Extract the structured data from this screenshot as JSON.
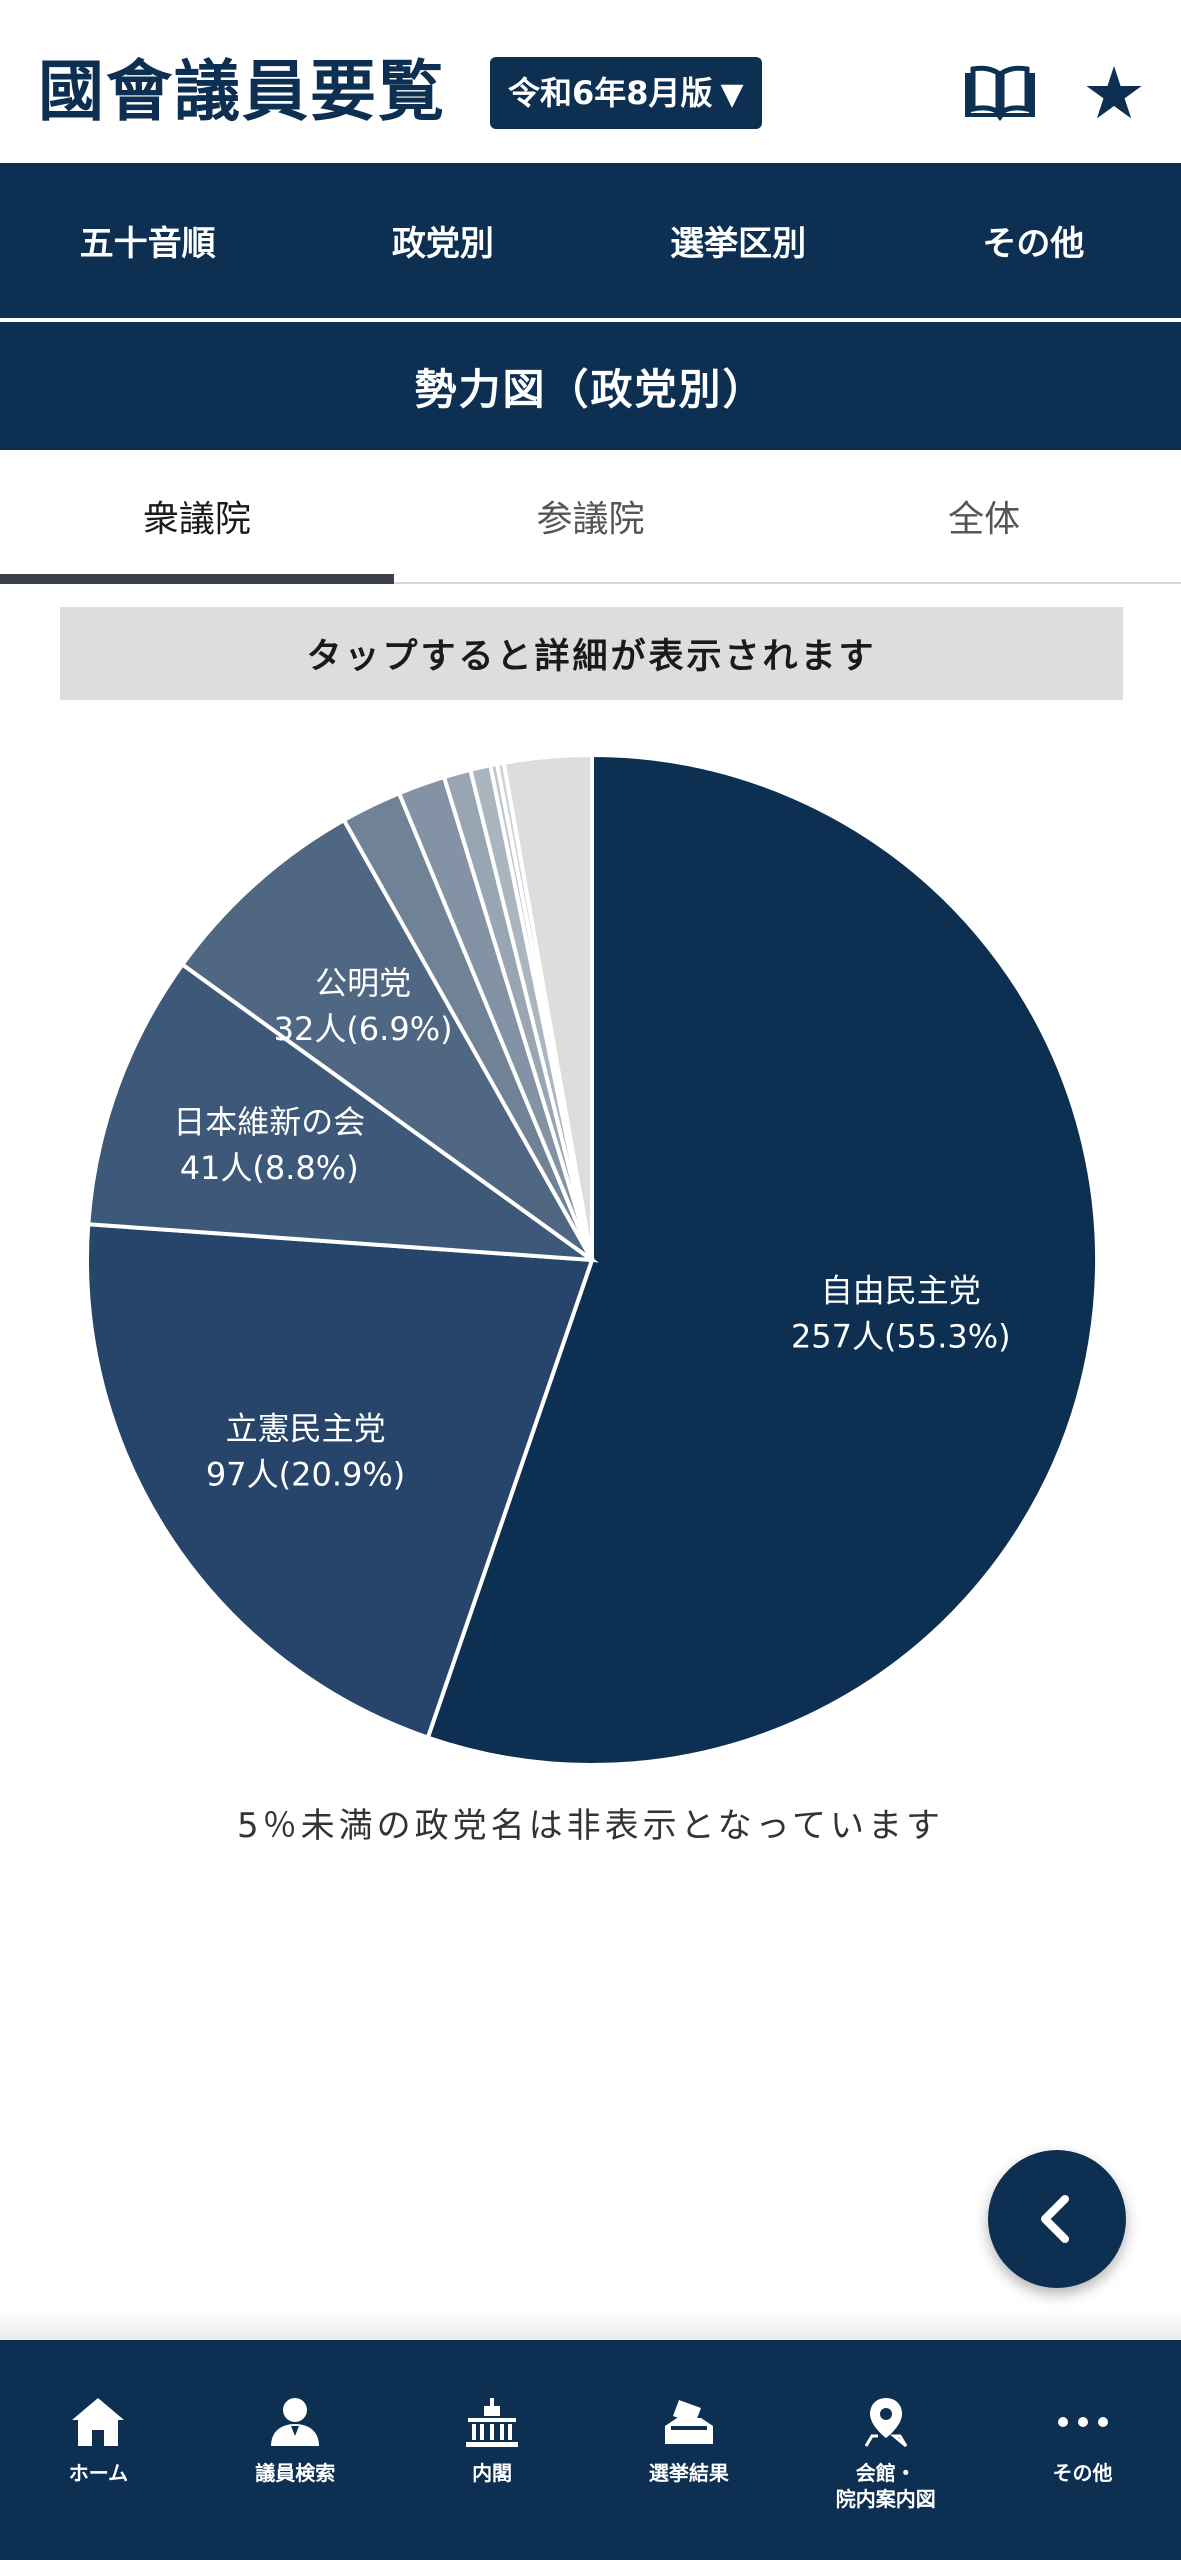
{
  "header": {
    "title": "國會議員要覧",
    "edition": "令和6年8月版",
    "edition_arrow": "▼",
    "star_glyph": "★"
  },
  "main_nav": [
    "五十音順",
    "政党別",
    "選挙区別",
    "その他"
  ],
  "section_title": "勢力図（政党別）",
  "tabs": [
    {
      "label": "衆議院",
      "active": true
    },
    {
      "label": "参議院",
      "active": false
    },
    {
      "label": "全体",
      "active": false
    }
  ],
  "hint": "タップすると詳細が表示されます",
  "chart_data": {
    "type": "pie",
    "slices": [
      {
        "name": "自由民主党",
        "value": 257,
        "label": "257人(55.3%)",
        "color": "#0c2f52"
      },
      {
        "name": "立憲民主党",
        "value": 97,
        "label": "97人(20.9%)",
        "color": "#27456a"
      },
      {
        "name": "日本維新の会",
        "value": 41,
        "label": "41人(8.8%)",
        "color": "#3d5878"
      },
      {
        "name": "公明党",
        "value": 32,
        "label": "32人(6.9%)",
        "color": "#4f6782"
      },
      {
        "name": "",
        "value": 9,
        "label": "",
        "color": "#6f8296"
      },
      {
        "name": "",
        "value": 7,
        "label": "",
        "color": "#8393a5"
      },
      {
        "name": "",
        "value": 4,
        "label": "",
        "color": "#98a6b4"
      },
      {
        "name": "",
        "value": 3,
        "label": "",
        "color": "#aab5c0"
      },
      {
        "name": "",
        "value": 1,
        "label": "",
        "color": "#bcc4cc"
      },
      {
        "name": "",
        "value": 1,
        "label": "",
        "color": "#ccd2d6"
      },
      {
        "name": "",
        "value": 13,
        "label": "",
        "color": "#dcdedb"
      }
    ]
  },
  "note": "5％未満の政党名は非表示となっています",
  "bottom_nav": [
    {
      "label": "ホーム",
      "icon": "home-icon"
    },
    {
      "label": "議員検索",
      "icon": "person-search-icon"
    },
    {
      "label": "内閣",
      "icon": "diet-building-icon"
    },
    {
      "label": "選挙結果",
      "icon": "ballot-box-icon"
    },
    {
      "label": "会館・\n院内案内図",
      "icon": "map-pin-icon"
    },
    {
      "label": "その他",
      "icon": "more-icon"
    }
  ]
}
